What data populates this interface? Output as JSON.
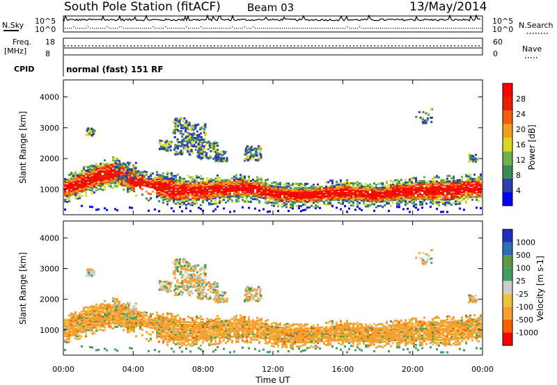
{
  "header": {
    "title": "South Pole Station (fitACF)",
    "beam": "Beam 03",
    "date": "13/May/2014"
  },
  "top_panels": {
    "nsky_label": "N.Sky",
    "nsky_tick_top": "10^5",
    "nsky_tick_bottom": "10^0",
    "nsearch_label": "N.Search",
    "nsearch_tick_top": "10^5",
    "nsearch_tick_bottom": "10^0",
    "freq_label_1": "Freq.",
    "freq_label_2": "[MHz]",
    "freq_tick_top": "18",
    "freq_tick_bottom": "8",
    "nave_label": "Nave",
    "nave_tick_top": "60",
    "nave_tick_bottom": "0",
    "cpid_label": "CPID",
    "cpid_value": "normal (fast) 151 RF"
  },
  "colors": {
    "power": [
      "#0000ff",
      "#2f3fb0",
      "#3a8c55",
      "#70b050",
      "#d8d820",
      "#f0a020",
      "#f06010",
      "#e82000",
      "#ff0000"
    ],
    "velocity": [
      "#ff0000",
      "#f86000",
      "#f5a030",
      "#f0c040",
      "#cccccc",
      "#3fa060",
      "#5c9a48",
      "#2f6fb0",
      "#2030c0"
    ]
  },
  "chart_data": [
    {
      "type": "heatmap",
      "parameter": "power",
      "ylabel": "Slant Range [km]",
      "xlabel": "",
      "ylim": [
        180,
        4550
      ],
      "xlim": [
        0,
        24
      ],
      "yticks": [
        1000,
        2000,
        3000,
        4000
      ],
      "colorbar": {
        "label": "Power [dB]",
        "ticks": [
          4,
          8,
          12,
          16,
          20,
          24,
          28
        ],
        "range": [
          0,
          32
        ]
      }
    },
    {
      "type": "heatmap",
      "parameter": "velocity",
      "ylabel": "Slant Range [km]",
      "xlabel": "Time UT",
      "ylim": [
        180,
        4550
      ],
      "xlim": [
        0,
        24
      ],
      "yticks": [
        1000,
        2000,
        3000,
        4000
      ],
      "xtick_labels": [
        "00:00",
        "04:00",
        "08:00",
        "12:00",
        "16:00",
        "20:00",
        "00:00"
      ],
      "colorbar": {
        "label": "Velocity [m s-1]",
        "ticks": [
          "1000",
          "500",
          "100",
          "25",
          "-25",
          "-100",
          "-500",
          "-1000"
        ]
      }
    }
  ],
  "band_profile": {
    "hours": [
      0,
      1,
      2,
      3,
      4,
      5,
      5.5,
      6,
      7,
      8,
      9,
      10,
      11,
      12,
      13,
      14,
      15,
      16,
      17,
      18,
      19,
      20,
      21,
      22,
      23,
      24
    ],
    "center_km": [
      1050,
      1250,
      1500,
      1600,
      1300,
      1100,
      1150,
      1050,
      1000,
      1000,
      1050,
      1100,
      1050,
      900,
      850,
      850,
      900,
      950,
      900,
      850,
      950,
      1000,
      1000,
      1000,
      1050,
      1100
    ],
    "width_km": [
      600,
      650,
      700,
      700,
      700,
      600,
      700,
      750,
      650,
      650,
      600,
      600,
      550,
      500,
      500,
      500,
      500,
      550,
      500,
      500,
      550,
      600,
      650,
      650,
      600,
      650
    ]
  }
}
